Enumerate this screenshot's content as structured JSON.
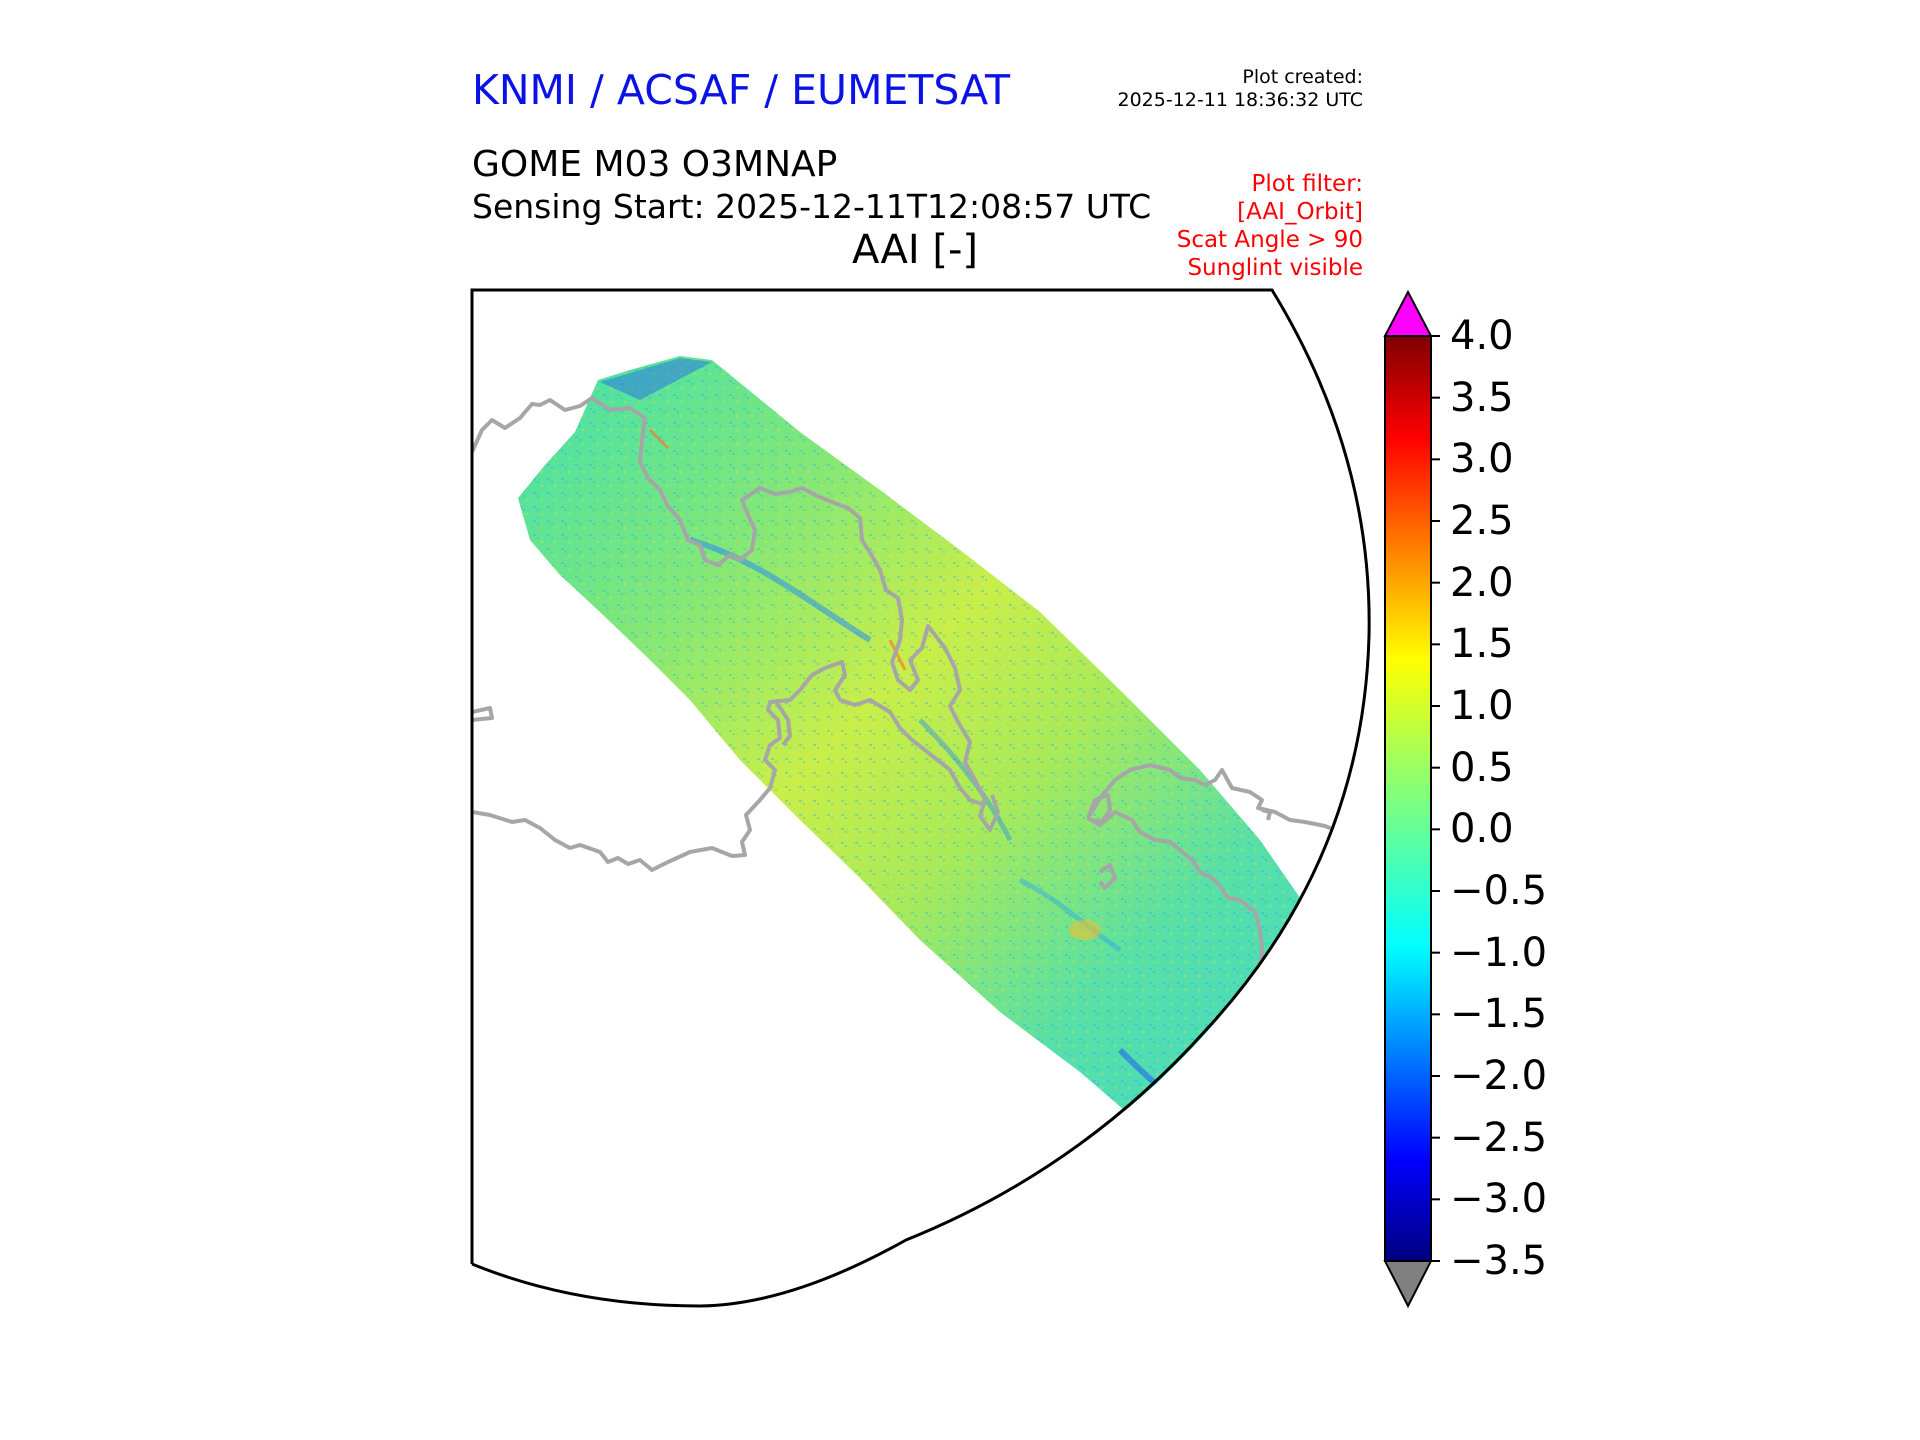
{
  "header": {
    "organization": "KNMI / ACSAF / EUMETSAT",
    "plot_created_label": "Plot created:",
    "plot_created_time": "2025-12-11 18:36:32 UTC",
    "product": "GOME M03 O3MNAP",
    "sensing_start": "Sensing Start: 2025-12-11T12:08:57 UTC",
    "quantity": "AAI [-]",
    "filter_lines": [
      "Plot filter:",
      "[AAI_Orbit]",
      "Scat Angle > 90",
      "Sunglint visible"
    ]
  },
  "colorbar": {
    "min": -3.5,
    "max": 4.0,
    "ticks": [
      "4.0",
      "3.5",
      "3.0",
      "2.5",
      "2.0",
      "1.5",
      "1.0",
      "0.5",
      "0.0",
      "−0.5",
      "−1.0",
      "−1.5",
      "−2.0",
      "−2.5",
      "−3.0",
      "−3.5"
    ],
    "colormap": "jet",
    "over_color": "#ff00ff",
    "under_color": "#808080"
  },
  "map": {
    "coastline_color": "#a6a6a6",
    "frame_color": "#000000"
  }
}
